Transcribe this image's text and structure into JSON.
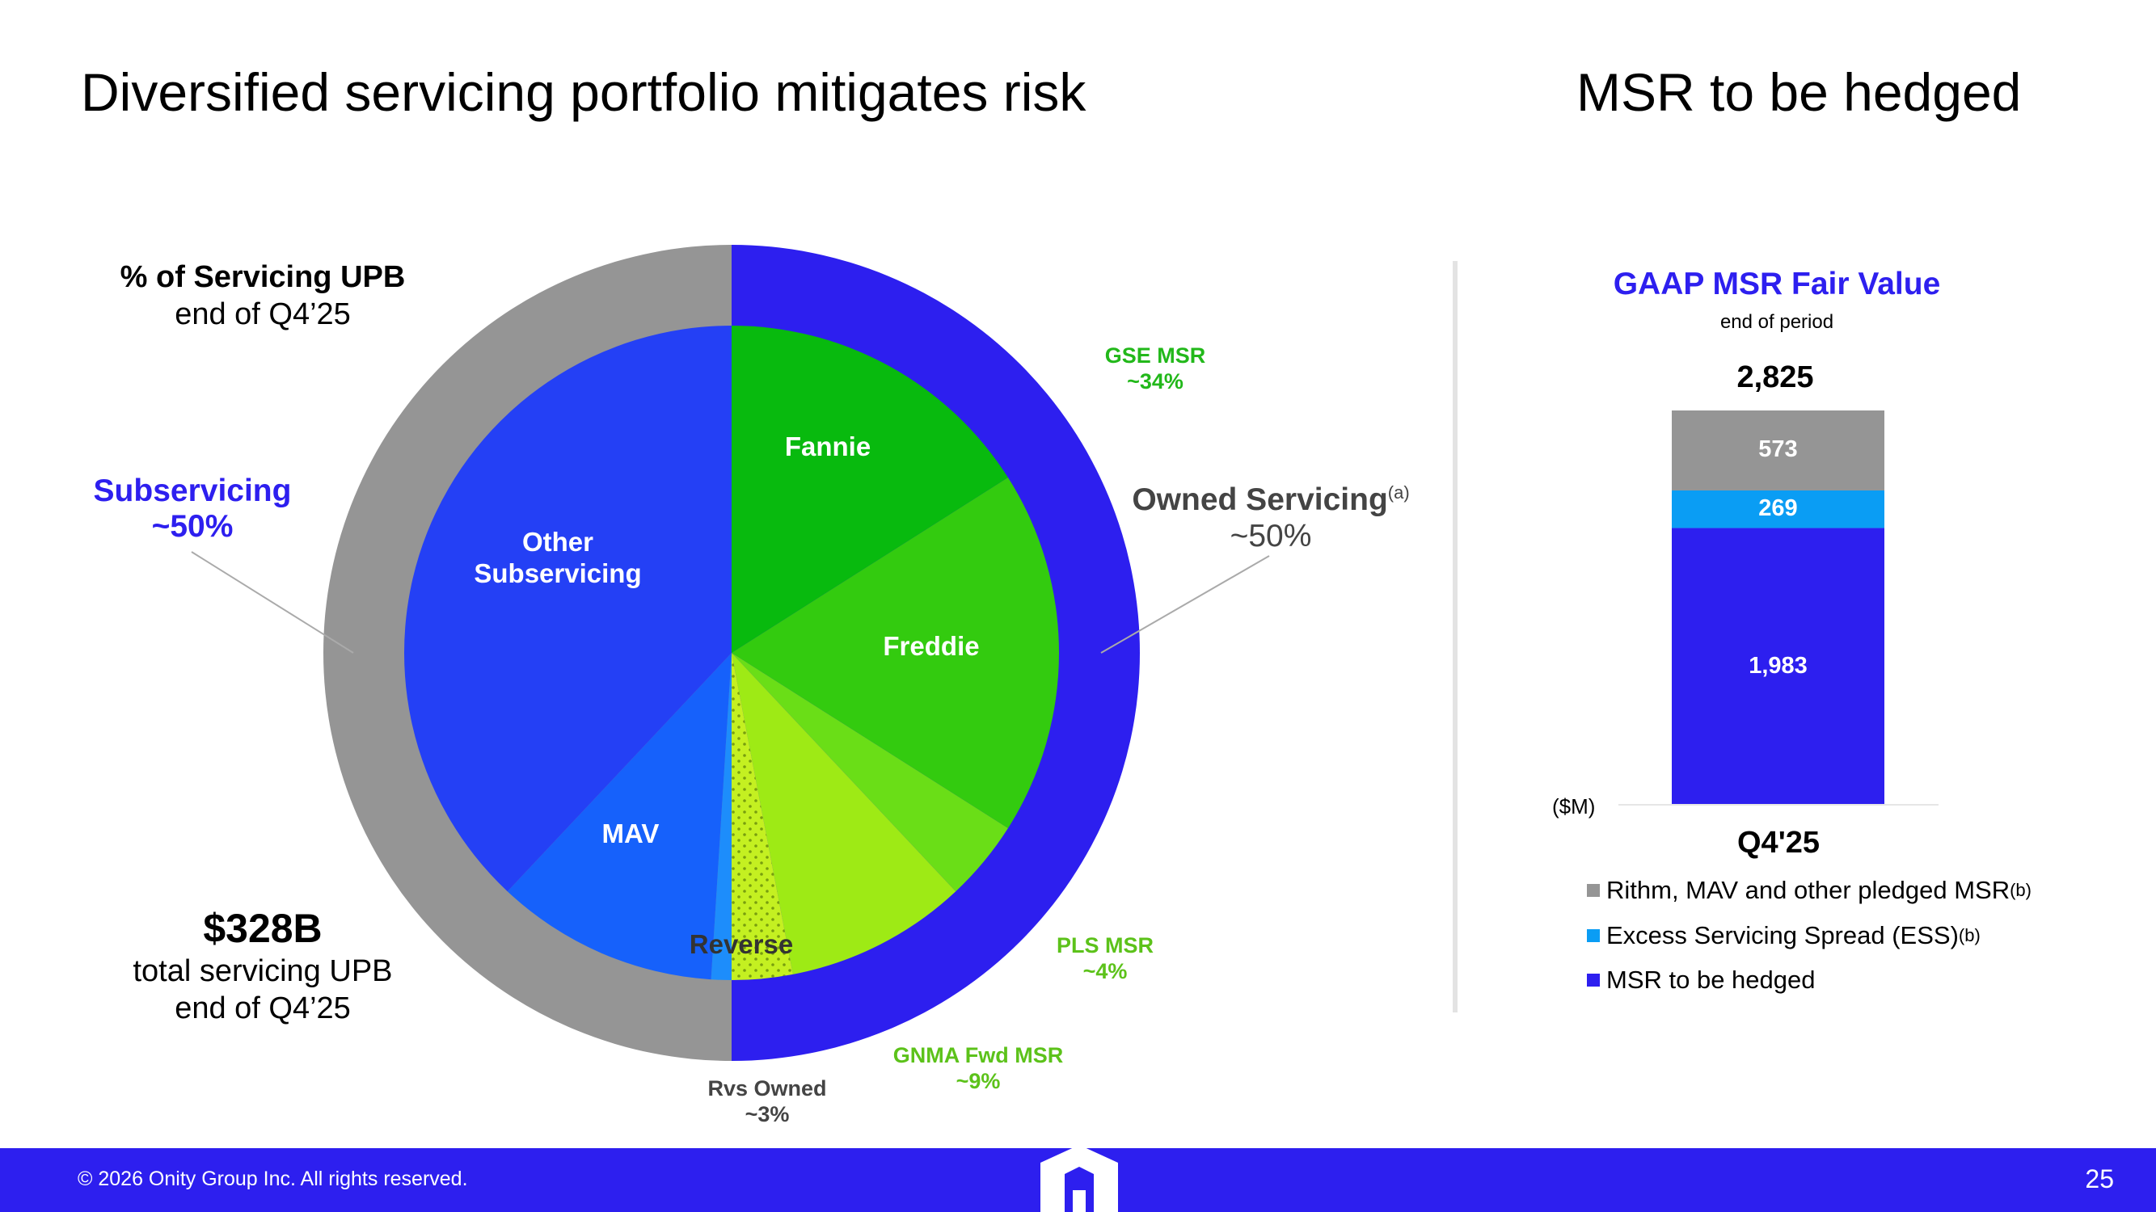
{
  "titles": {
    "left": "Diversified servicing portfolio mitigates risk",
    "right": "MSR to be hedged"
  },
  "colors": {
    "brand_blue": "#2d1fef",
    "gse_green": "#22b81a",
    "gnma_green": "#5cc21a",
    "owned_gray": "#9a9a9a",
    "gray_text": "#444444"
  },
  "chart_data": [
    {
      "type": "pie",
      "title": "% of Servicing UPB",
      "subtitle": "end of Q4’25",
      "outer_ring": [
        {
          "name": "Subservicing",
          "label": "~50%",
          "value": 50,
          "color": "#2d1fef"
        },
        {
          "name": "Owned Servicing",
          "superscript": "(a)",
          "label": "~50%",
          "value": 50,
          "color": "#959595"
        }
      ],
      "inner_slices": [
        {
          "name": "Fannie",
          "value": 16,
          "color": "#08ba0e"
        },
        {
          "name": "Freddie",
          "value": 18,
          "color": "#33cb0f"
        },
        {
          "name": "PLS",
          "value": 4,
          "color": "#6ade17"
        },
        {
          "name": "GNMA Fwd",
          "value": 9,
          "color": "#9eea15"
        },
        {
          "name": "Rvs Owned",
          "value": 3,
          "color": "#c4f021"
        },
        {
          "name": "Reverse",
          "value": 1,
          "color": "#1d8dfb"
        },
        {
          "name": "MAV",
          "value": 11,
          "color": "#1661fb"
        },
        {
          "name": "Other Subservicing",
          "value": 38,
          "color": "#2440f5"
        }
      ],
      "slice_labels": {
        "fannie": "Fannie",
        "freddie": "Freddie",
        "mav": "MAV",
        "reverse": "Reverse",
        "other_line1": "Other",
        "other_line2": "Subservicing"
      },
      "callouts": {
        "gse_name": "GSE MSR",
        "gse_pct": "~34%",
        "pls_name": "PLS MSR",
        "pls_pct": "~4%",
        "gnma_name": "GNMA Fwd MSR",
        "gnma_pct": "~9%",
        "rvs_name": "Rvs Owned",
        "rvs_pct": "~3%"
      },
      "total": {
        "value": "$328B",
        "line1": "total servicing UPB",
        "line2": "end of Q4’25"
      }
    },
    {
      "type": "bar",
      "stacked": true,
      "title": "GAAP MSR Fair Value",
      "subtitle": "end of period",
      "ylabel": "($M)",
      "categories": [
        "Q4'25"
      ],
      "total_label": "2,825",
      "total": 2825,
      "series": [
        {
          "name": "MSR to be hedged",
          "values": [
            1983
          ],
          "label": "1,983",
          "color": "#2d1fef"
        },
        {
          "name": "Excess Servicing Spread (ESS)",
          "superscript": "(b)",
          "values": [
            269
          ],
          "label": "269",
          "color": "#0a9df4"
        },
        {
          "name": "Rithm, MAV and other pledged MSR",
          "superscript": "(b)",
          "values": [
            573
          ],
          "label": "573",
          "color": "#959595"
        }
      ]
    }
  ],
  "footer": {
    "copyright": "© 2026 Onity Group Inc. All rights reserved.",
    "page": "25"
  }
}
